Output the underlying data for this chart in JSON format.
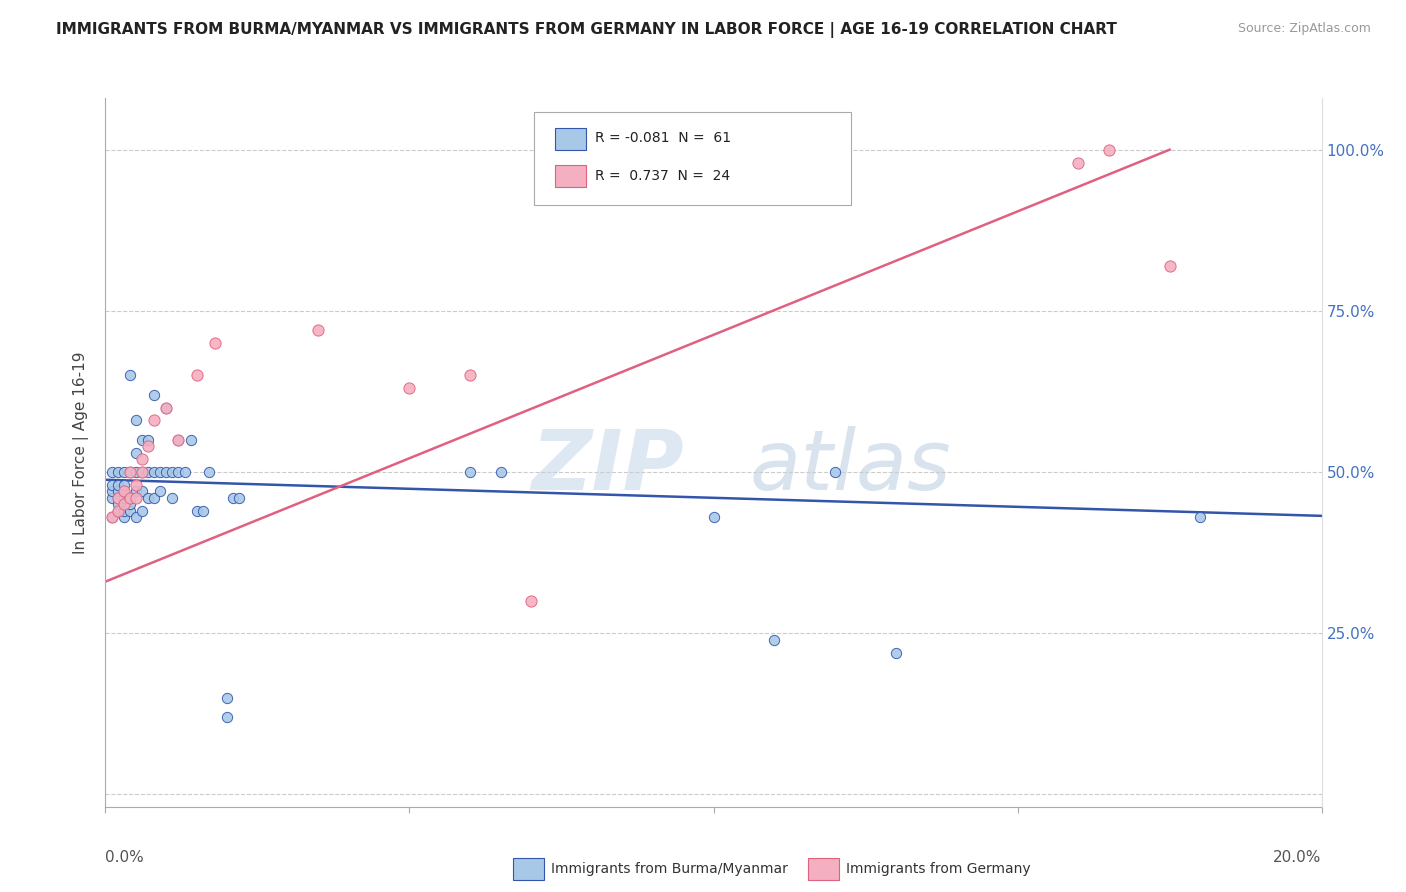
{
  "title": "IMMIGRANTS FROM BURMA/MYANMAR VS IMMIGRANTS FROM GERMANY IN LABOR FORCE | AGE 16-19 CORRELATION CHART",
  "source": "Source: ZipAtlas.com",
  "ylabel": "In Labor Force | Age 16-19",
  "right_yticklabels": [
    "",
    "25.0%",
    "50.0%",
    "75.0%",
    "100.0%"
  ],
  "xlim": [
    0.0,
    0.2
  ],
  "ylim": [
    -0.02,
    1.08
  ],
  "color_burma": "#a8c8e8",
  "color_germany": "#f4b0c0",
  "line_color_burma": "#3355aa",
  "line_color_germany": "#e06080",
  "watermark_zip": "ZIP",
  "watermark_atlas": "atlas",
  "burma_x": [
    0.001,
    0.001,
    0.001,
    0.001,
    0.001,
    0.002,
    0.002,
    0.002,
    0.002,
    0.002,
    0.002,
    0.003,
    0.003,
    0.003,
    0.003,
    0.003,
    0.003,
    0.004,
    0.004,
    0.004,
    0.004,
    0.004,
    0.005,
    0.005,
    0.005,
    0.005,
    0.005,
    0.006,
    0.006,
    0.006,
    0.006,
    0.007,
    0.007,
    0.007,
    0.008,
    0.008,
    0.008,
    0.009,
    0.009,
    0.01,
    0.01,
    0.011,
    0.011,
    0.012,
    0.012,
    0.013,
    0.014,
    0.015,
    0.016,
    0.017,
    0.02,
    0.02,
    0.021,
    0.022,
    0.06,
    0.065,
    0.1,
    0.11,
    0.12,
    0.13,
    0.18
  ],
  "burma_y": [
    0.43,
    0.46,
    0.47,
    0.48,
    0.5,
    0.44,
    0.45,
    0.46,
    0.47,
    0.48,
    0.5,
    0.43,
    0.44,
    0.46,
    0.47,
    0.48,
    0.5,
    0.44,
    0.45,
    0.46,
    0.5,
    0.65,
    0.43,
    0.47,
    0.5,
    0.53,
    0.58,
    0.44,
    0.47,
    0.5,
    0.55,
    0.46,
    0.5,
    0.55,
    0.46,
    0.5,
    0.62,
    0.47,
    0.5,
    0.5,
    0.6,
    0.46,
    0.5,
    0.5,
    0.55,
    0.5,
    0.55,
    0.44,
    0.44,
    0.5,
    0.12,
    0.15,
    0.46,
    0.46,
    0.5,
    0.5,
    0.43,
    0.24,
    0.5,
    0.22,
    0.43
  ],
  "germany_x": [
    0.001,
    0.002,
    0.002,
    0.003,
    0.003,
    0.004,
    0.004,
    0.005,
    0.005,
    0.006,
    0.006,
    0.007,
    0.008,
    0.01,
    0.012,
    0.015,
    0.018,
    0.035,
    0.05,
    0.06,
    0.07,
    0.16,
    0.165,
    0.175
  ],
  "germany_y": [
    0.43,
    0.44,
    0.46,
    0.45,
    0.47,
    0.46,
    0.5,
    0.46,
    0.48,
    0.5,
    0.52,
    0.54,
    0.58,
    0.6,
    0.55,
    0.65,
    0.7,
    0.72,
    0.63,
    0.65,
    0.3,
    0.98,
    1.0,
    0.82
  ],
  "burma_trend_x": [
    0.0,
    0.2
  ],
  "burma_trend_y": [
    0.488,
    0.432
  ],
  "germany_trend_x": [
    0.0,
    0.175
  ],
  "germany_trend_y": [
    0.33,
    1.0
  ]
}
